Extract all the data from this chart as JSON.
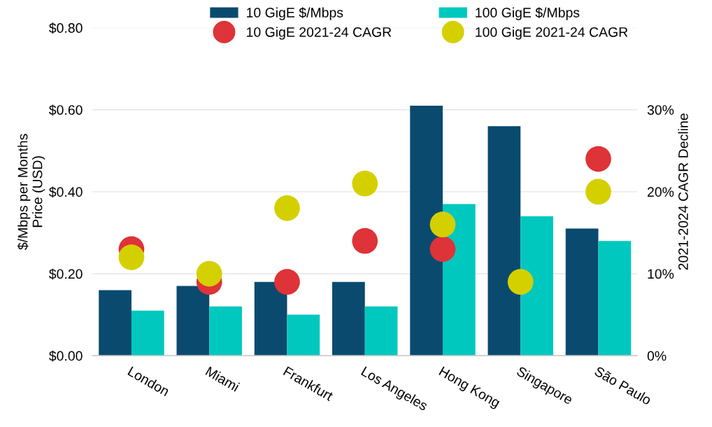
{
  "chart_data": {
    "type": "bar",
    "ylabel": "$/Mbps per Months\nPrice (USD)",
    "y2label": "2021-2024 CAGR Decline",
    "categories": [
      "London",
      "Miami",
      "Frankfurt",
      "Los Angeles",
      "Hong Kong",
      "Singapore",
      "São Paulo"
    ],
    "series": [
      {
        "name": "10 GigE $/Mbps",
        "color": "#0a4a6e",
        "values": [
          0.16,
          0.17,
          0.18,
          0.18,
          0.61,
          0.56,
          0.31
        ]
      },
      {
        "name": "100 GigE $/Mbps",
        "color": "#00c8be",
        "values": [
          0.11,
          0.12,
          0.1,
          0.12,
          0.37,
          0.34,
          0.28
        ]
      },
      {
        "name": "10 GigE 2021-24 CAGR",
        "type": "scatter",
        "axis": "y2",
        "color": "#de3338",
        "x": [
          "London",
          "Miami",
          "Frankfurt",
          "Los Angeles",
          "Hong Kong",
          "Singapore",
          "São Paulo"
        ],
        "values": [
          13,
          9,
          9,
          14,
          13,
          null,
          24
        ]
      },
      {
        "name": "100 GigE 2021-24 CAGR",
        "type": "scatter",
        "axis": "y2",
        "color": "#d4d000",
        "x": [
          "London",
          "Miami",
          "Frankfurt",
          "Los Angeles",
          "Hong Kong",
          "Singapore",
          "São Paulo"
        ],
        "values": [
          12,
          10,
          18,
          21,
          16,
          9,
          20
        ]
      }
    ],
    "ylim": [
      0,
      0.8
    ],
    "yticks": [
      {
        "value": 0,
        "label": "$0.00"
      },
      {
        "value": 0.2,
        "label": "$0.20"
      },
      {
        "value": 0.4,
        "label": "$0.40"
      },
      {
        "value": 0.6,
        "label": "$0.60"
      },
      {
        "value": 0.8,
        "label": "$0.80"
      }
    ],
    "y2lim": [
      0,
      40
    ],
    "y2ticks": [
      {
        "value": 0,
        "label": "0%"
      },
      {
        "value": 10,
        "label": "10%"
      },
      {
        "value": 20,
        "label": "20%"
      },
      {
        "value": 30,
        "label": "30%"
      }
    ],
    "grid": "y",
    "legend": "top",
    "marker": "circle"
  }
}
